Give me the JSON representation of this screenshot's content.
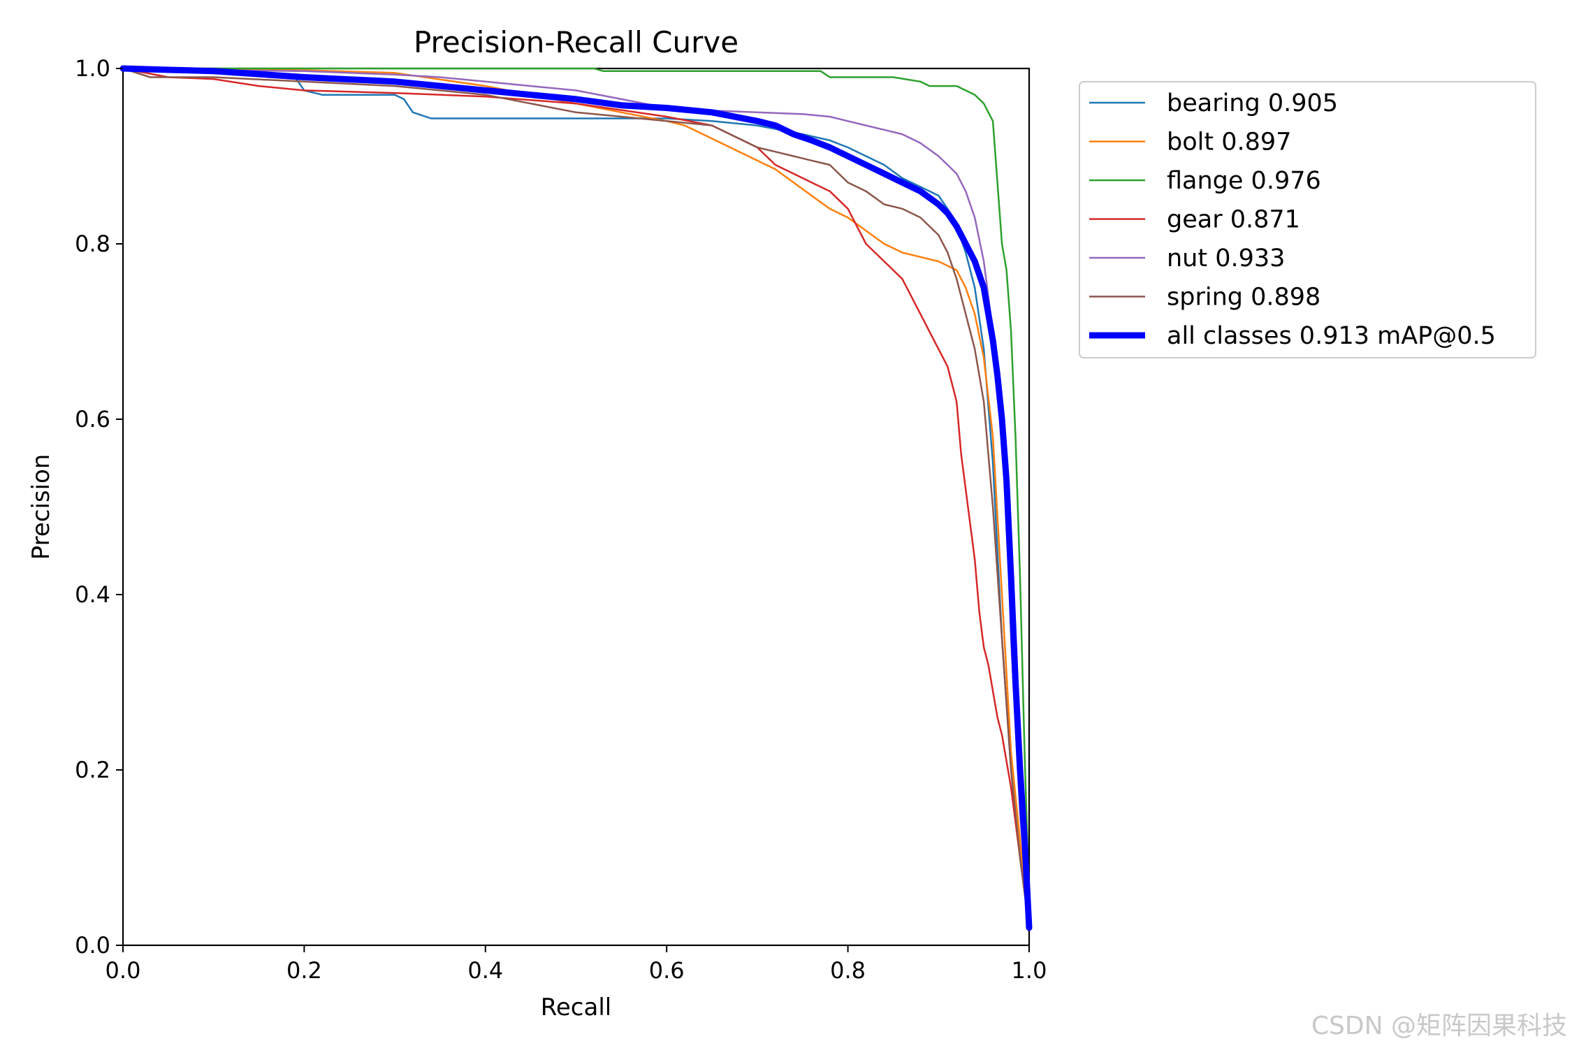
{
  "chart_data": {
    "type": "line",
    "title": "Precision-Recall Curve",
    "xlabel": "Recall",
    "ylabel": "Precision",
    "xlim": [
      0,
      1
    ],
    "ylim": [
      0,
      1
    ],
    "xticks": [
      "0.0",
      "0.2",
      "0.4",
      "0.6",
      "0.8",
      "1.0"
    ],
    "yticks": [
      "0.0",
      "0.2",
      "0.4",
      "0.6",
      "0.8",
      "1.0"
    ],
    "grid": false,
    "legend_position": "outside-upper-right",
    "series": [
      {
        "name": "bearing 0.905",
        "color": "#1f77b4",
        "x": [
          0,
          0.1,
          0.19,
          0.2,
          0.22,
          0.3,
          0.31,
          0.32,
          0.34,
          0.4,
          0.5,
          0.6,
          0.65,
          0.7,
          0.75,
          0.78,
          0.8,
          0.82,
          0.84,
          0.86,
          0.88,
          0.9,
          0.91,
          0.92,
          0.93,
          0.94,
          0.95,
          0.96,
          0.97,
          0.98,
          0.99,
          1.0
        ],
        "y": [
          1.0,
          0.995,
          0.99,
          0.975,
          0.97,
          0.97,
          0.965,
          0.95,
          0.943,
          0.943,
          0.943,
          0.943,
          0.94,
          0.935,
          0.925,
          0.918,
          0.91,
          0.9,
          0.89,
          0.875,
          0.865,
          0.855,
          0.84,
          0.82,
          0.79,
          0.75,
          0.68,
          0.55,
          0.35,
          0.2,
          0.1,
          0.02
        ]
      },
      {
        "name": "bolt 0.897",
        "color": "#ff7f0e",
        "x": [
          0,
          0.1,
          0.2,
          0.3,
          0.4,
          0.5,
          0.55,
          0.6,
          0.62,
          0.65,
          0.7,
          0.72,
          0.74,
          0.76,
          0.78,
          0.8,
          0.82,
          0.84,
          0.86,
          0.88,
          0.9,
          0.92,
          0.93,
          0.94,
          0.95,
          0.96,
          0.97,
          0.98,
          0.99,
          1.0
        ],
        "y": [
          1.0,
          1.0,
          0.998,
          0.995,
          0.98,
          0.96,
          0.95,
          0.94,
          0.935,
          0.92,
          0.895,
          0.885,
          0.87,
          0.855,
          0.84,
          0.83,
          0.815,
          0.8,
          0.79,
          0.785,
          0.78,
          0.77,
          0.75,
          0.72,
          0.67,
          0.58,
          0.4,
          0.22,
          0.12,
          0.02
        ]
      },
      {
        "name": "flange 0.976",
        "color": "#2ca02c",
        "x": [
          0,
          0.2,
          0.4,
          0.52,
          0.53,
          0.6,
          0.7,
          0.77,
          0.78,
          0.85,
          0.88,
          0.89,
          0.92,
          0.94,
          0.95,
          0.96,
          0.965,
          0.97,
          0.975,
          0.98,
          0.985,
          0.99,
          0.995,
          1.0
        ],
        "y": [
          1.0,
          1.0,
          1.0,
          1.0,
          0.997,
          0.997,
          0.997,
          0.997,
          0.99,
          0.99,
          0.985,
          0.98,
          0.98,
          0.97,
          0.96,
          0.94,
          0.87,
          0.8,
          0.77,
          0.7,
          0.58,
          0.42,
          0.22,
          0.05
        ]
      },
      {
        "name": "gear 0.871",
        "color": "#d62728",
        "x": [
          0,
          0.05,
          0.1,
          0.15,
          0.2,
          0.3,
          0.4,
          0.5,
          0.6,
          0.65,
          0.7,
          0.72,
          0.74,
          0.76,
          0.78,
          0.8,
          0.82,
          0.84,
          0.86,
          0.87,
          0.88,
          0.89,
          0.9,
          0.91,
          0.92,
          0.925,
          0.93,
          0.935,
          0.94,
          0.945,
          0.95,
          0.955,
          0.96,
          0.965,
          0.97,
          0.98,
          0.99,
          1.0
        ],
        "y": [
          1.0,
          0.99,
          0.988,
          0.98,
          0.975,
          0.972,
          0.968,
          0.96,
          0.945,
          0.935,
          0.91,
          0.89,
          0.88,
          0.87,
          0.86,
          0.84,
          0.8,
          0.78,
          0.76,
          0.74,
          0.72,
          0.7,
          0.68,
          0.66,
          0.62,
          0.56,
          0.52,
          0.48,
          0.44,
          0.38,
          0.34,
          0.32,
          0.29,
          0.26,
          0.24,
          0.18,
          0.1,
          0.02
        ]
      },
      {
        "name": "nut 0.933",
        "color": "#9467bd",
        "x": [
          0,
          0.1,
          0.2,
          0.3,
          0.35,
          0.4,
          0.45,
          0.5,
          0.55,
          0.6,
          0.65,
          0.7,
          0.75,
          0.78,
          0.8,
          0.82,
          0.84,
          0.86,
          0.88,
          0.9,
          0.91,
          0.92,
          0.93,
          0.94,
          0.95,
          0.955,
          0.96,
          0.965,
          0.97,
          0.975,
          0.98,
          0.99,
          1.0
        ],
        "y": [
          1.0,
          0.998,
          0.997,
          0.993,
          0.99,
          0.985,
          0.98,
          0.975,
          0.965,
          0.955,
          0.952,
          0.95,
          0.948,
          0.945,
          0.94,
          0.935,
          0.93,
          0.925,
          0.915,
          0.9,
          0.89,
          0.88,
          0.86,
          0.83,
          0.78,
          0.74,
          0.7,
          0.66,
          0.6,
          0.5,
          0.35,
          0.15,
          0.02
        ]
      },
      {
        "name": "spring 0.898",
        "color": "#8c564b",
        "x": [
          0,
          0.03,
          0.1,
          0.2,
          0.3,
          0.4,
          0.45,
          0.5,
          0.55,
          0.6,
          0.65,
          0.68,
          0.7,
          0.72,
          0.74,
          0.76,
          0.78,
          0.8,
          0.82,
          0.84,
          0.86,
          0.88,
          0.9,
          0.91,
          0.92,
          0.93,
          0.94,
          0.95,
          0.96,
          0.97,
          0.98,
          0.99,
          1.0
        ],
        "y": [
          1.0,
          0.99,
          0.99,
          0.985,
          0.98,
          0.97,
          0.96,
          0.95,
          0.945,
          0.94,
          0.935,
          0.92,
          0.91,
          0.905,
          0.9,
          0.895,
          0.89,
          0.87,
          0.86,
          0.845,
          0.84,
          0.83,
          0.81,
          0.79,
          0.76,
          0.72,
          0.68,
          0.62,
          0.5,
          0.35,
          0.2,
          0.1,
          0.02
        ]
      },
      {
        "name": "all classes 0.913 mAP@0.5",
        "color": "#0000ff",
        "x": [
          0,
          0.1,
          0.2,
          0.3,
          0.4,
          0.45,
          0.5,
          0.55,
          0.6,
          0.65,
          0.7,
          0.72,
          0.74,
          0.76,
          0.78,
          0.8,
          0.82,
          0.84,
          0.86,
          0.88,
          0.9,
          0.91,
          0.92,
          0.93,
          0.94,
          0.95,
          0.955,
          0.96,
          0.965,
          0.97,
          0.975,
          0.98,
          0.985,
          0.99,
          0.995,
          1.0
        ],
        "y": [
          1.0,
          0.997,
          0.99,
          0.985,
          0.975,
          0.97,
          0.965,
          0.958,
          0.955,
          0.95,
          0.94,
          0.935,
          0.925,
          0.918,
          0.91,
          0.9,
          0.89,
          0.88,
          0.87,
          0.86,
          0.845,
          0.835,
          0.82,
          0.8,
          0.78,
          0.75,
          0.72,
          0.69,
          0.65,
          0.6,
          0.53,
          0.42,
          0.3,
          0.2,
          0.12,
          0.02
        ],
        "line_width": "thick"
      }
    ]
  },
  "watermark": "CSDN @矩阵因果科技"
}
